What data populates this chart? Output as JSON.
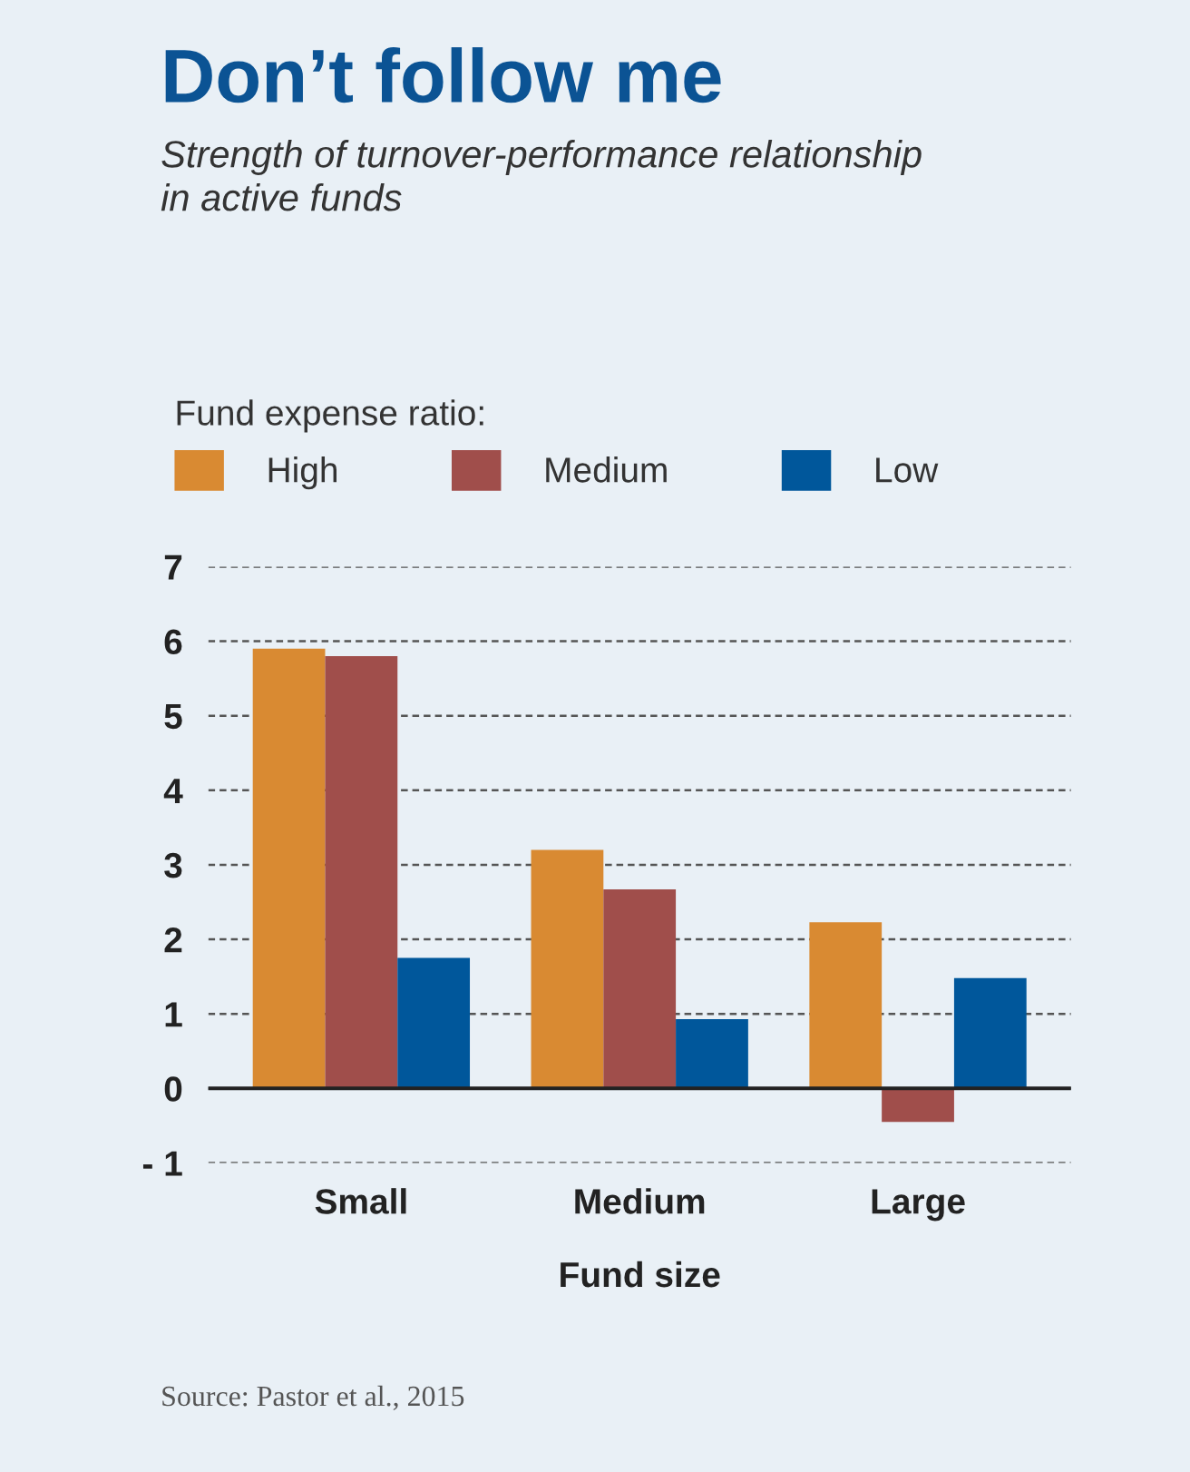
{
  "chart_data": {
    "type": "bar",
    "title": "Don’t follow me",
    "subtitle": "Strength of turnover-performance relationship\nin active funds",
    "legend_title": "Fund expense ratio:",
    "xlabel": "Fund size",
    "categories": [
      "Small",
      "Medium",
      "Large"
    ],
    "series": [
      {
        "name": "High",
        "color": "#d98a32",
        "values": [
          5.9,
          3.2,
          2.23
        ]
      },
      {
        "name": "Medium",
        "color": "#a04e4b",
        "values": [
          5.8,
          2.67,
          -0.45
        ]
      },
      {
        "name": "Low",
        "color": "#00579b",
        "values": [
          1.75,
          0.93,
          1.48
        ]
      }
    ],
    "ylim": [
      -1,
      7
    ],
    "yticks": [
      {
        "value": -1,
        "label": "- 1"
      },
      0,
      1,
      2,
      3,
      4,
      5,
      6,
      7
    ],
    "grid": "y",
    "legend": "top",
    "annotations": [
      "Source: Pastor et al., 2015"
    ]
  }
}
